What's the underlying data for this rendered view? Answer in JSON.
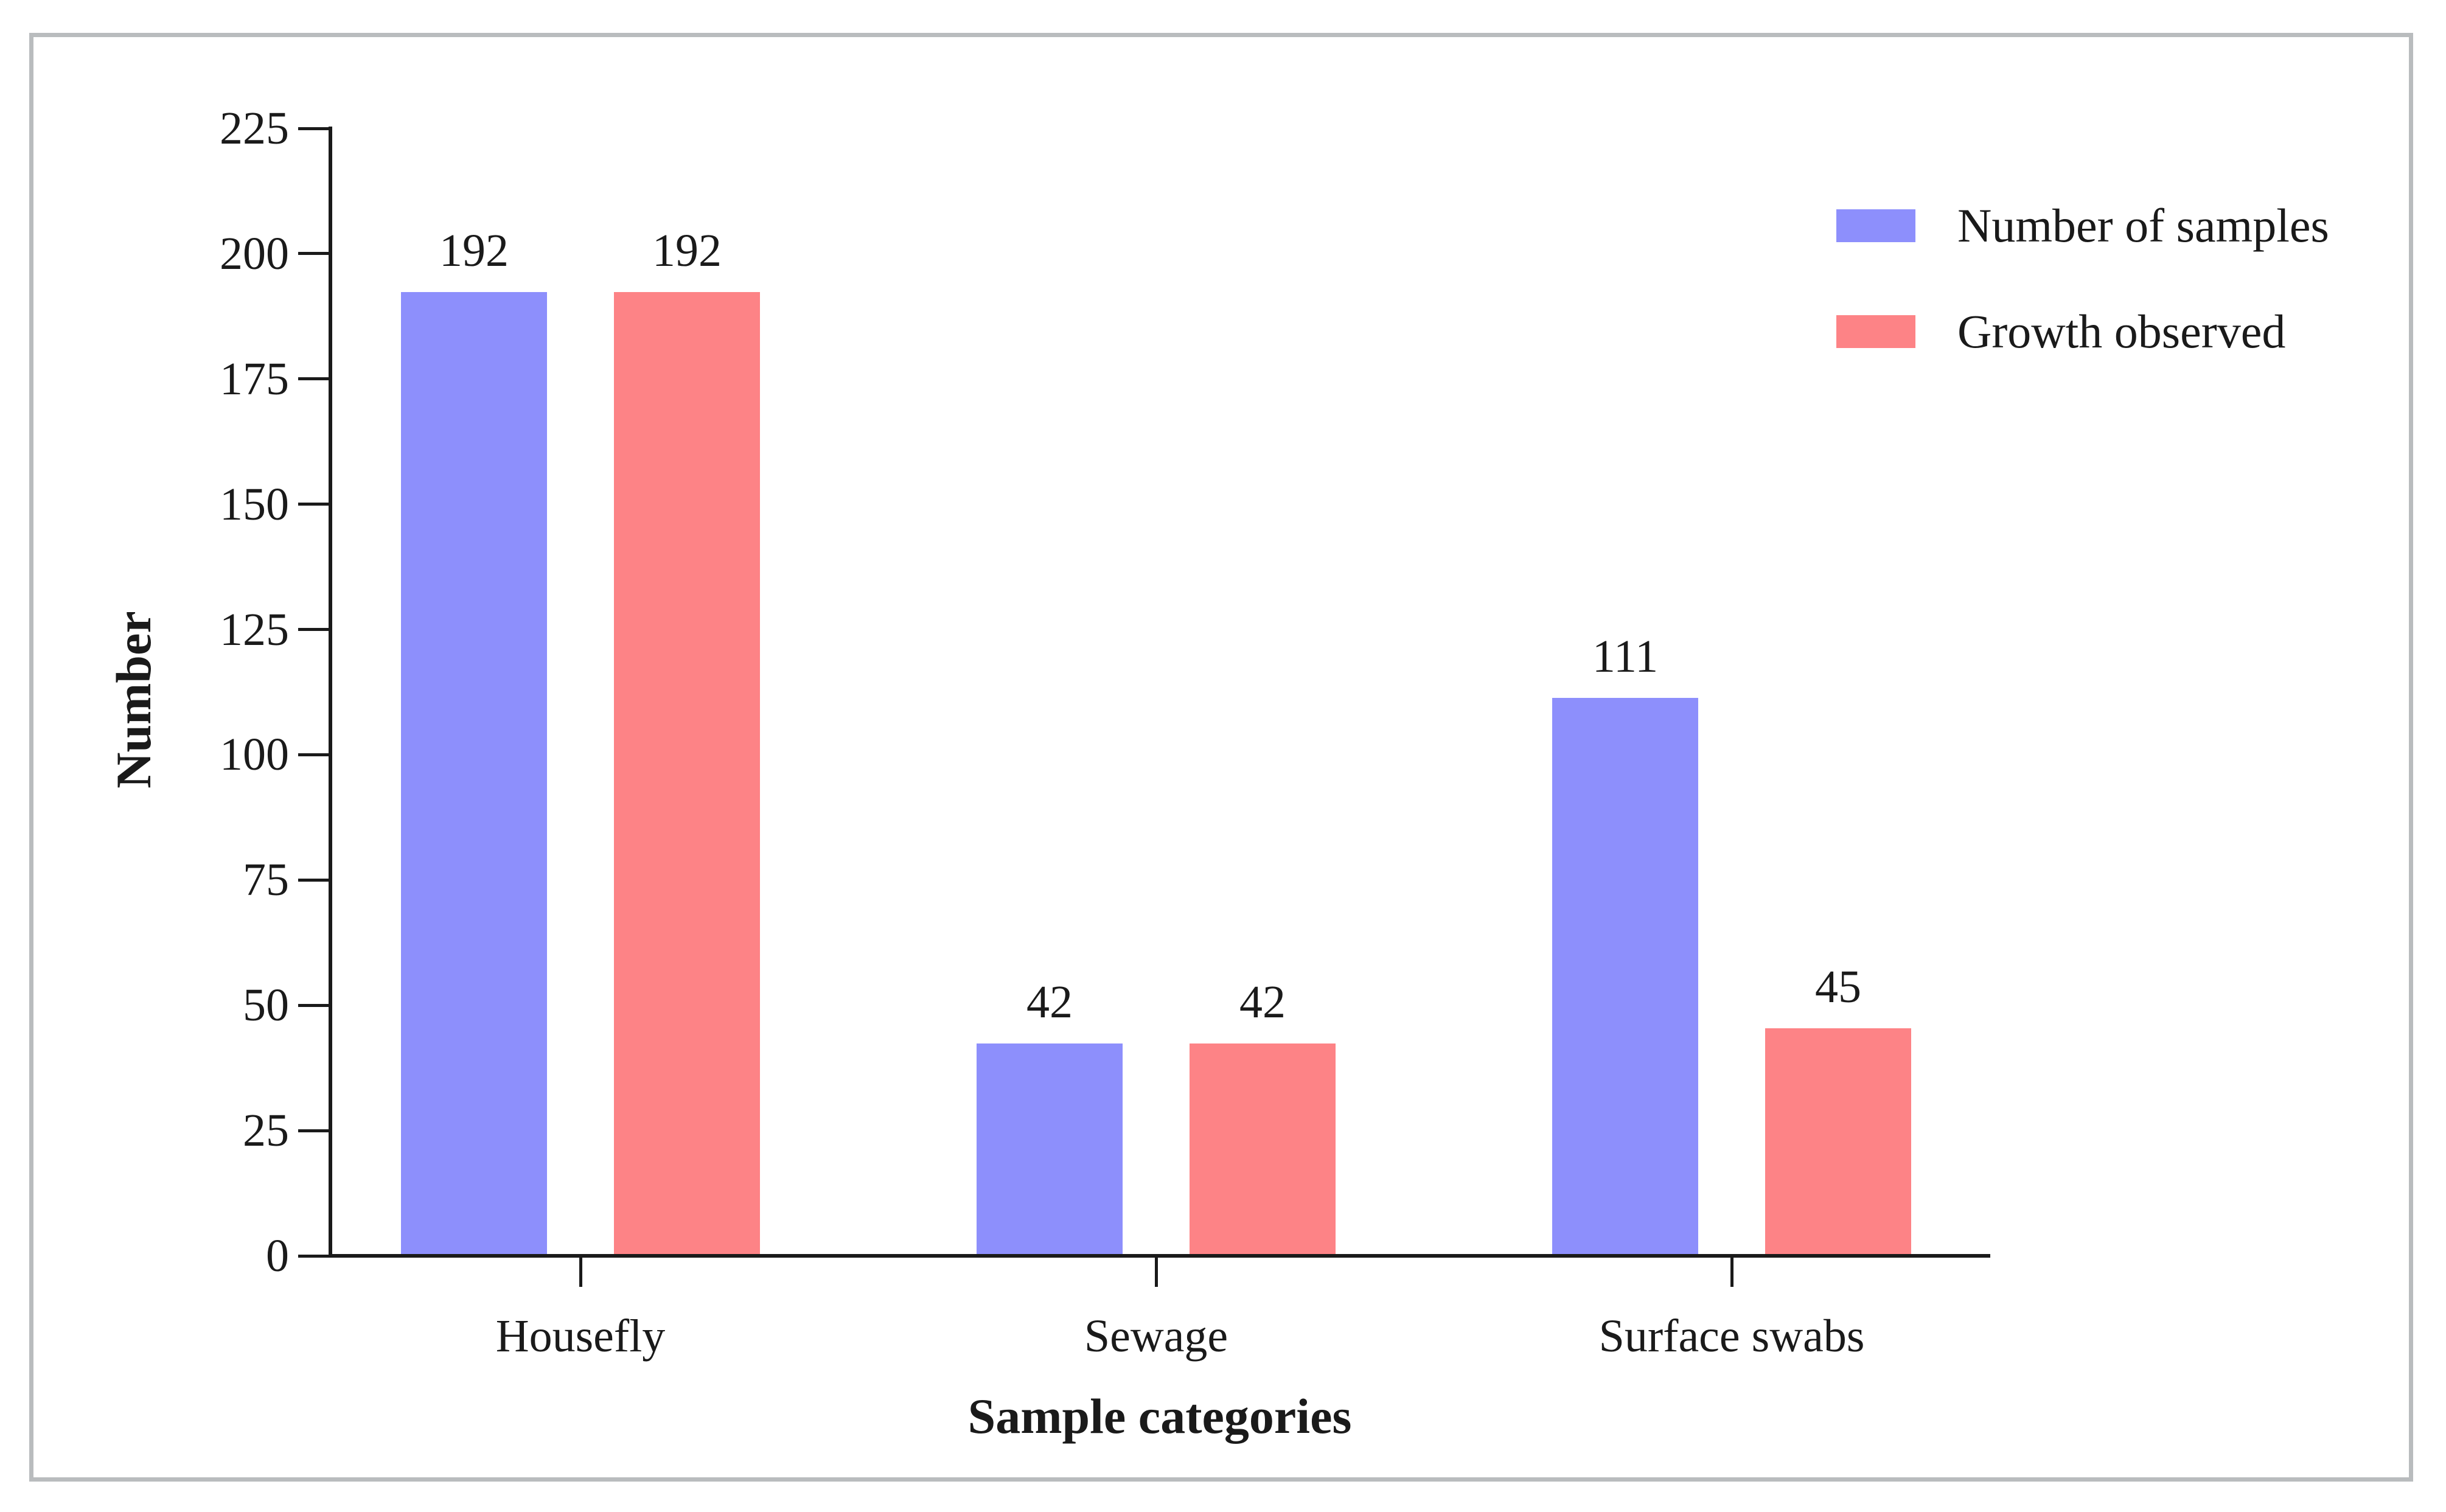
{
  "chart_data": {
    "type": "bar",
    "categories": [
      "Housefly",
      "Sewage",
      "Surface swabs"
    ],
    "series": [
      {
        "name": "Number of samples",
        "color": "#8D8FFC",
        "values": [
          192,
          42,
          111
        ]
      },
      {
        "name": "Growth observed",
        "color": "#FD8386",
        "values": [
          192,
          42,
          45
        ]
      }
    ],
    "title": "",
    "xlabel": "Sample categories",
    "ylabel": "Number",
    "ylim": [
      0,
      225
    ],
    "yticks": [
      0,
      25,
      50,
      75,
      100,
      125,
      150,
      175,
      200,
      225
    ],
    "bar_value_labels": [
      [
        192,
        42,
        111
      ],
      [
        192,
        42,
        45
      ]
    ],
    "grid": false,
    "legend_position": "upper-right"
  },
  "legend": {
    "items": [
      {
        "label": "Number of samples",
        "color": "#8D8FFC"
      },
      {
        "label": "Growth observed",
        "color": "#FD8386"
      }
    ]
  },
  "colors": {
    "series_samples": "#8D8FFC",
    "series_growth": "#FD8386",
    "axis": "#1a1a1a",
    "text": "#1a1a1a",
    "frame_border": "#b9bcbe",
    "background": "#ffffff"
  }
}
